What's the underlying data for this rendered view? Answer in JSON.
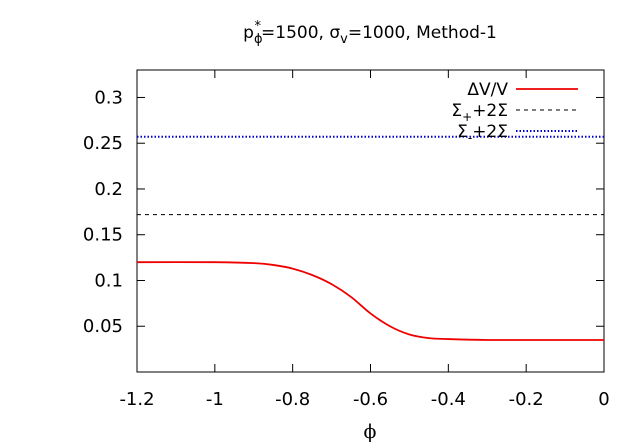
{
  "chart_data": {
    "type": "line",
    "title": {
      "p": "p",
      "p_sup": "*",
      "p_sub": "ϕ",
      "p_value": "=1500, ",
      "sigma": "σ",
      "sigma_sub": "v",
      "rest": "=1000, Method-1"
    },
    "xlabel": "ϕ",
    "ylabel": "",
    "xlim": [
      -1.2,
      0
    ],
    "ylim": [
      0,
      0.33
    ],
    "x_ticks": [
      -1.2,
      -1,
      -0.8,
      -0.6,
      -0.4,
      -0.2,
      0
    ],
    "x_tick_labels": [
      "-1.2",
      "-1",
      "-0.8",
      "-0.6",
      "-0.4",
      "-0.2",
      "0"
    ],
    "y_ticks": [
      0.05,
      0.1,
      0.15,
      0.2,
      0.25,
      0.3
    ],
    "y_tick_labels": [
      "0.05",
      "0.1",
      "0.15",
      "0.2",
      "0.25",
      "0.3"
    ],
    "grid": false,
    "legend_position": "top-right",
    "series": [
      {
        "name": "ΔV/V",
        "label_parts": {
          "base": "ΔV/V",
          "sub": "",
          "rest": ""
        },
        "color": "#ee0000",
        "style": "solid",
        "x": [
          -1.2,
          -1.0,
          -0.9,
          -0.85,
          -0.8,
          -0.75,
          -0.7,
          -0.65,
          -0.6,
          -0.55,
          -0.5,
          -0.45,
          -0.4,
          -0.3,
          -0.2,
          -0.1,
          0.0
        ],
        "y": [
          0.12,
          0.12,
          0.119,
          0.117,
          0.113,
          0.106,
          0.096,
          0.082,
          0.064,
          0.05,
          0.041,
          0.037,
          0.036,
          0.035,
          0.035,
          0.035,
          0.035
        ]
      },
      {
        "name": "Σ+2Σ",
        "label_parts": {
          "base": "Σ",
          "sub": "+",
          "rest": "+2Σ"
        },
        "color": "#000000",
        "style": "dashed",
        "x": [
          -1.2,
          0.0
        ],
        "y": [
          0.172,
          0.172
        ]
      },
      {
        "name": "Σ-+2Σ",
        "label_parts": {
          "base": "Σ",
          "sub": "-",
          "rest": "+2Σ"
        },
        "color": "#0000cc",
        "style": "dotted",
        "x": [
          -1.2,
          0.0
        ],
        "y": [
          0.257,
          0.257
        ]
      }
    ]
  }
}
